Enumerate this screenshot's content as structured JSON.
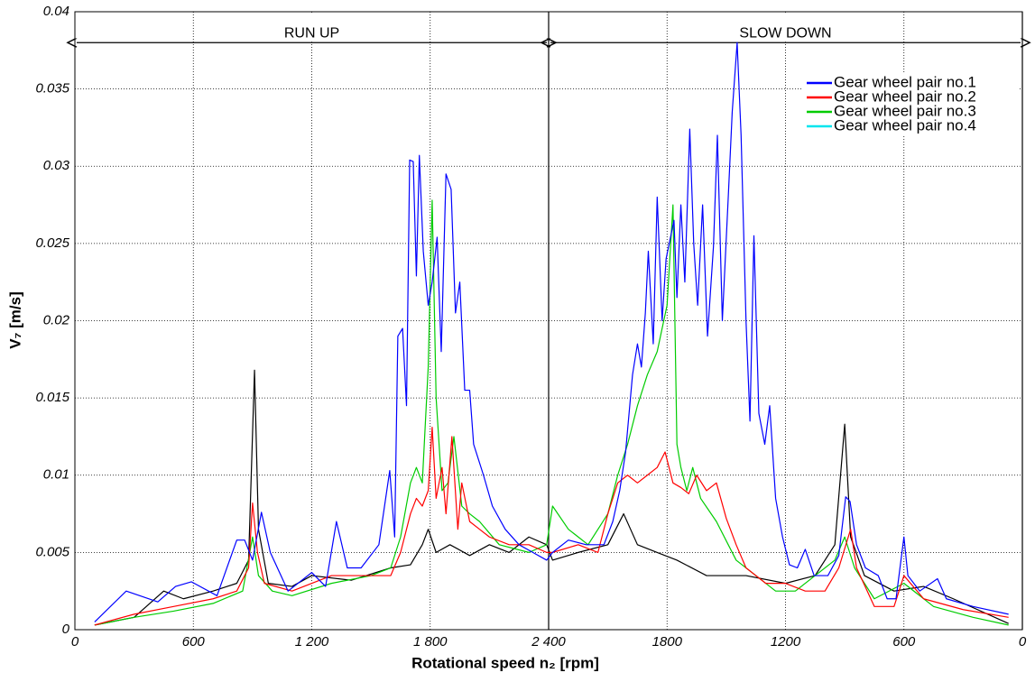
{
  "chart_data": {
    "type": "line",
    "xlabel": "Rotational speed n₂ [rpm]",
    "ylabel": "V₇ [m/s]",
    "xlim": [
      0,
      4800
    ],
    "ylim": [
      0,
      0.04
    ],
    "xticks": [
      0,
      600,
      {
        "value": 1200,
        "label": "1 200"
      },
      {
        "value": 1800,
        "label": "1 800"
      },
      {
        "value": 2400,
        "label": "2 400"
      },
      {
        "value": 3000,
        "label": "1800"
      },
      {
        "value": 3600,
        "label": "1200"
      },
      {
        "value": 4200,
        "label": "600"
      },
      {
        "value": 4800,
        "label": "0"
      }
    ],
    "yticks": [
      0,
      0.005,
      0.01,
      0.015,
      0.02,
      0.025,
      0.03,
      0.035,
      0.04
    ],
    "grid": true,
    "legend": "upper right",
    "annotations": [
      {
        "text": "RUN UP",
        "x": [
          0,
          2400
        ],
        "y": 0.038
      },
      {
        "text": "SLOW DOWN",
        "x": [
          2400,
          4800
        ],
        "y": 0.038
      }
    ],
    "series": [
      {
        "name": "Gear wheel pair no.1",
        "color": "#0000ff",
        "x": [
          100,
          260,
          420,
          510,
          590,
          720,
          820,
          860,
          900,
          945,
          990,
          1080,
          1200,
          1270,
          1325,
          1380,
          1450,
          1540,
          1595,
          1620,
          1636,
          1660,
          1680,
          1696,
          1714,
          1730,
          1745,
          1765,
          1790,
          1810,
          1835,
          1856,
          1880,
          1906,
          1928,
          1950,
          1975,
          2000,
          2020,
          2070,
          2115,
          2180,
          2250,
          2320,
          2390,
          2420,
          2500,
          2590,
          2680,
          2725,
          2760,
          2790,
          2825,
          2850,
          2870,
          2890,
          2905,
          2930,
          2950,
          2975,
          2995,
          3035,
          3050,
          3070,
          3090,
          3115,
          3135,
          3155,
          3180,
          3205,
          3235,
          3255,
          3280,
          3310,
          3330,
          3355,
          3375,
          3400,
          3420,
          3440,
          3465,
          3495,
          3520,
          3550,
          3585,
          3620,
          3660,
          3700,
          3745,
          3815,
          3870,
          3905,
          3927,
          3960,
          4005,
          4070,
          4115,
          4160,
          4200,
          4220,
          4280,
          4370,
          4415,
          4550,
          4730
        ],
        "values": [
          0.0005,
          0.0025,
          0.0018,
          0.0028,
          0.0031,
          0.0022,
          0.0058,
          0.0058,
          0.0045,
          0.0076,
          0.005,
          0.0025,
          0.0037,
          0.0028,
          0.007,
          0.004,
          0.004,
          0.0055,
          0.0103,
          0.006,
          0.019,
          0.0195,
          0.0145,
          0.0304,
          0.0303,
          0.0229,
          0.0307,
          0.0245,
          0.021,
          0.0225,
          0.0254,
          0.018,
          0.0295,
          0.0285,
          0.0205,
          0.0225,
          0.0155,
          0.0155,
          0.012,
          0.01,
          0.008,
          0.0065,
          0.0055,
          0.005,
          0.0045,
          0.005,
          0.0058,
          0.0055,
          0.0055,
          0.007,
          0.009,
          0.0115,
          0.0165,
          0.0185,
          0.017,
          0.0205,
          0.0245,
          0.0185,
          0.028,
          0.02,
          0.024,
          0.0265,
          0.0215,
          0.0275,
          0.0225,
          0.0324,
          0.025,
          0.021,
          0.0275,
          0.019,
          0.0248,
          0.032,
          0.02,
          0.028,
          0.0335,
          0.038,
          0.032,
          0.02,
          0.0135,
          0.0255,
          0.014,
          0.012,
          0.0145,
          0.0085,
          0.006,
          0.0042,
          0.004,
          0.0052,
          0.0035,
          0.0035,
          0.0048,
          0.0086,
          0.0083,
          0.0055,
          0.004,
          0.0035,
          0.002,
          0.002,
          0.006,
          0.0035,
          0.0025,
          0.0033,
          0.002,
          0.0015,
          0.001
        ]
      },
      {
        "name": "Gear wheel pair no.2",
        "color": "#ff0000",
        "x": [
          100,
          300,
          500,
          700,
          820,
          880,
          900,
          925,
          960,
          1100,
          1300,
          1500,
          1600,
          1650,
          1670,
          1700,
          1730,
          1760,
          1790,
          1810,
          1830,
          1860,
          1880,
          1910,
          1940,
          1960,
          2000,
          2050,
          2100,
          2200,
          2300,
          2390,
          2420,
          2550,
          2650,
          2700,
          2750,
          2800,
          2850,
          2900,
          2950,
          2990,
          3030,
          3070,
          3110,
          3150,
          3200,
          3250,
          3300,
          3350,
          3400,
          3500,
          3600,
          3700,
          3800,
          3870,
          3930,
          3960,
          4050,
          4150,
          4200,
          4300,
          4500,
          4730
        ],
        "values": [
          0.0003,
          0.001,
          0.0015,
          0.002,
          0.0025,
          0.004,
          0.0082,
          0.005,
          0.003,
          0.0025,
          0.0035,
          0.0035,
          0.0035,
          0.005,
          0.006,
          0.0075,
          0.0085,
          0.008,
          0.009,
          0.0131,
          0.0085,
          0.0105,
          0.0075,
          0.0125,
          0.0065,
          0.0095,
          0.007,
          0.0065,
          0.006,
          0.0055,
          0.0055,
          0.005,
          0.005,
          0.0055,
          0.005,
          0.0075,
          0.0095,
          0.01,
          0.0095,
          0.01,
          0.0105,
          0.0115,
          0.0095,
          0.0092,
          0.0088,
          0.01,
          0.009,
          0.0095,
          0.0072,
          0.0055,
          0.004,
          0.003,
          0.003,
          0.0025,
          0.0025,
          0.004,
          0.0065,
          0.004,
          0.0015,
          0.0015,
          0.0035,
          0.002,
          0.0013,
          0.0008
        ]
      },
      {
        "name": "Gear wheel pair no.3",
        "color": "#00cc00",
        "x": [
          100,
          300,
          500,
          700,
          850,
          900,
          930,
          1000,
          1100,
          1300,
          1500,
          1600,
          1650,
          1700,
          1730,
          1760,
          1790,
          1810,
          1830,
          1860,
          1890,
          1920,
          1960,
          2000,
          2050,
          2150,
          2300,
          2390,
          2420,
          2500,
          2600,
          2700,
          2750,
          2800,
          2850,
          2900,
          2950,
          3000,
          3030,
          3050,
          3070,
          3100,
          3130,
          3170,
          3250,
          3350,
          3450,
          3550,
          3650,
          3750,
          3850,
          3900,
          3950,
          4050,
          4200,
          4350,
          4550,
          4730
        ],
        "values": [
          0.0003,
          0.0008,
          0.0012,
          0.0017,
          0.0025,
          0.006,
          0.0035,
          0.0025,
          0.0022,
          0.003,
          0.0035,
          0.004,
          0.006,
          0.0095,
          0.0105,
          0.0095,
          0.017,
          0.0278,
          0.015,
          0.009,
          0.0095,
          0.0125,
          0.008,
          0.0075,
          0.007,
          0.0055,
          0.005,
          0.0055,
          0.008,
          0.0065,
          0.0055,
          0.0075,
          0.01,
          0.012,
          0.0145,
          0.0165,
          0.018,
          0.021,
          0.0275,
          0.012,
          0.0105,
          0.009,
          0.0105,
          0.0085,
          0.007,
          0.0045,
          0.0035,
          0.0025,
          0.0025,
          0.0035,
          0.0045,
          0.006,
          0.004,
          0.002,
          0.003,
          0.0015,
          0.0008,
          0.0003
        ]
      },
      {
        "name": "Gear wheel pair no.4",
        "color": "#000000",
        "legend_color": "#00e5ee",
        "x": [
          100,
          300,
          450,
          550,
          700,
          820,
          880,
          910,
          930,
          980,
          1100,
          1200,
          1400,
          1600,
          1700,
          1760,
          1790,
          1830,
          1900,
          2000,
          2100,
          2200,
          2300,
          2390,
          2420,
          2550,
          2700,
          2780,
          2850,
          2950,
          3050,
          3200,
          3400,
          3600,
          3750,
          3850,
          3900,
          3930,
          4000,
          4150,
          4300,
          4450,
          4730
        ],
        "values": [
          0.0003,
          0.0008,
          0.0025,
          0.002,
          0.0025,
          0.003,
          0.0045,
          0.0168,
          0.0065,
          0.003,
          0.0028,
          0.0035,
          0.0032,
          0.004,
          0.0042,
          0.0055,
          0.0065,
          0.005,
          0.0055,
          0.0048,
          0.0055,
          0.005,
          0.006,
          0.0055,
          0.0045,
          0.005,
          0.0055,
          0.0075,
          0.0055,
          0.005,
          0.0045,
          0.0035,
          0.0035,
          0.003,
          0.0035,
          0.0055,
          0.0133,
          0.006,
          0.0035,
          0.0025,
          0.0028,
          0.002,
          0.0004
        ]
      }
    ]
  }
}
